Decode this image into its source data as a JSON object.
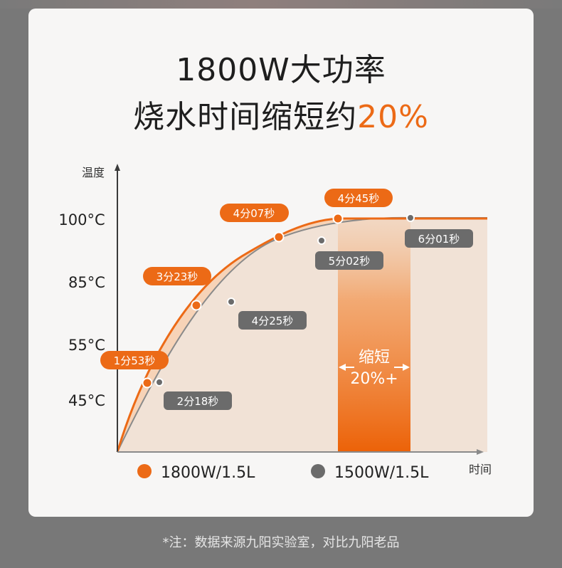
{
  "title_line1": "1800W大功率",
  "title_line2_main": "烧水时间缩短约",
  "title_line2_accent": "20%",
  "footnote": "*注：数据来源九阳实验室，对比九阳老品",
  "chart_data": {
    "type": "line",
    "ylabel": "温度",
    "xlabel": "时间",
    "y_ticks": [
      "45°C",
      "55°C",
      "85°C",
      "100°C"
    ],
    "series": [
      {
        "name": "1800W/1.5L",
        "color": "#ec6a16",
        "points": [
          {
            "label": "1分53秒",
            "temp": 45
          },
          {
            "label": "3分23秒",
            "temp": 85
          },
          {
            "label": "4分07秒",
            "temp": 96
          },
          {
            "label": "4分45秒",
            "temp": 100
          }
        ]
      },
      {
        "name": "1500W/1.5L",
        "color": "#6b6b6b",
        "points": [
          {
            "label": "2分18秒",
            "temp": 45
          },
          {
            "label": "4分25秒",
            "temp": 85
          },
          {
            "label": "5分02秒",
            "temp": 96
          },
          {
            "label": "6分01秒",
            "temp": 100
          }
        ]
      }
    ],
    "annotation": {
      "label": "缩短",
      "value": "20%+"
    }
  }
}
